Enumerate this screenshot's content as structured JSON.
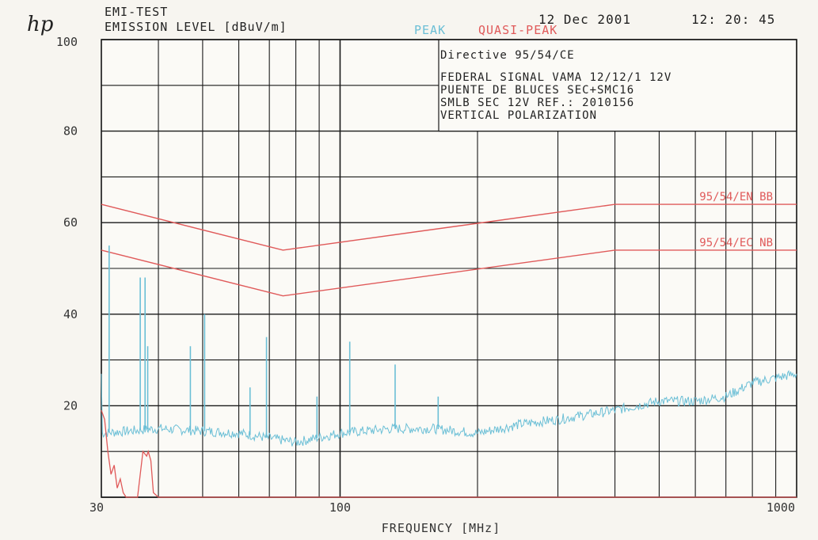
{
  "header": {
    "logo": "hp",
    "title": "EMI-TEST",
    "subtitle": "EMISSION LEVEL [dBuV/m]",
    "legend_peak": "PEAK",
    "legend_qp": "QUASI-PEAK",
    "date": "12 Dec 2001",
    "time": "12: 20: 45"
  },
  "info_box": {
    "directive": "Directive 95/54/CE",
    "line1": "FEDERAL SIGNAL VAMA 12/12/1 12V",
    "line2": "PUENTE DE BLUCES SEC+SMC16",
    "line3": "SMLB SEC 12V REF.: 2010156",
    "line4": "VERTICAL   POLARIZATION"
  },
  "colors": {
    "peak": "#6bbfd6",
    "quasi_peak": "#e05a5a",
    "grid": "#1a1a1a",
    "paper": "#f7f5f0"
  },
  "chart_data": {
    "type": "line",
    "title": "EMISSION LEVEL [dBuV/m]",
    "xlabel": "FREQUENCY  [MHz]",
    "ylabel": "",
    "x_scale": "log",
    "xlim": [
      30,
      1000
    ],
    "ylim": [
      0,
      100
    ],
    "x_ticks": [
      "30",
      "100",
      "1000"
    ],
    "y_ticks": [
      "100",
      "80",
      "60",
      "40",
      "20"
    ],
    "grid": true,
    "legend": "top",
    "series": [
      {
        "name": "PEAK",
        "color": "#6bbfd6",
        "noise_floor": [
          [
            30,
            14
          ],
          [
            40,
            15
          ],
          [
            60,
            14
          ],
          [
            80,
            12
          ],
          [
            100,
            14
          ],
          [
            130,
            15
          ],
          [
            160,
            15
          ],
          [
            200,
            14
          ],
          [
            250,
            16
          ],
          [
            300,
            17
          ],
          [
            400,
            19
          ],
          [
            500,
            21
          ],
          [
            600,
            21
          ],
          [
            700,
            22
          ],
          [
            800,
            25
          ],
          [
            1000,
            27
          ]
        ],
        "spikes": [
          [
            31.2,
            55
          ],
          [
            36.5,
            48
          ],
          [
            37.4,
            48
          ],
          [
            37.9,
            33
          ],
          [
            47,
            33
          ],
          [
            50.5,
            40
          ],
          [
            63.5,
            24
          ],
          [
            69,
            35
          ],
          [
            89,
            22
          ],
          [
            105,
            34
          ],
          [
            132,
            29
          ],
          [
            164,
            22
          ]
        ]
      },
      {
        "name": "QUASI-PEAK",
        "color": "#e05a5a",
        "x": [
          30,
          30.5,
          31,
          31.5,
          32,
          32.5,
          33,
          33.5,
          34,
          34.5,
          35,
          36,
          37,
          37.7,
          38,
          38.5,
          39,
          40,
          1000
        ],
        "y": [
          19,
          17,
          10,
          5,
          7,
          2,
          4,
          1,
          0,
          0,
          0,
          0,
          10,
          9,
          10,
          8,
          1,
          0,
          0
        ]
      }
    ],
    "limit_lines": [
      {
        "label": "95/54/EN BB",
        "x": [
          30,
          75,
          400,
          1000
        ],
        "y": [
          64,
          54,
          64,
          64
        ]
      },
      {
        "label": "95/54/EC  NB",
        "x": [
          30,
          75,
          400,
          1000
        ],
        "y": [
          54,
          44,
          54,
          54
        ]
      }
    ]
  }
}
